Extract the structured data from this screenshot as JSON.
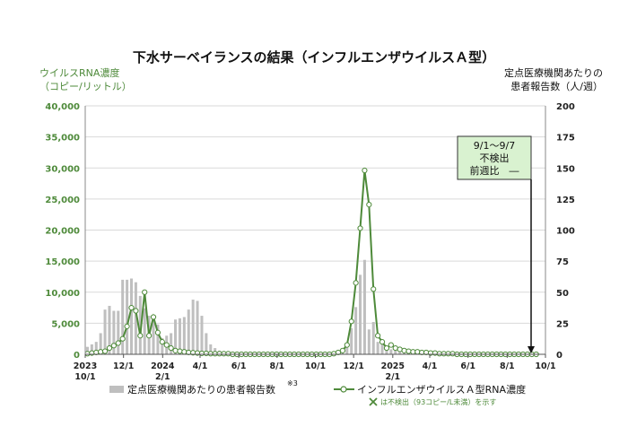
{
  "chart_data": {
    "type": "bar+line",
    "title": "下水サーベイランスの結果（インフルエンザウイルスＡ型）",
    "ylabel_left_line1": "ウイルスRNA濃度",
    "ylabel_left_line2": "（コピー/リットル）",
    "ylabel_right_line1": "定点医療機関あたりの",
    "ylabel_right_line2": "患者報告数（人/週）",
    "ylim_left": [
      0,
      40000
    ],
    "ylim_right": [
      0,
      200
    ],
    "yticks_left": [
      "0",
      "5,000",
      "10,000",
      "15,000",
      "20,000",
      "25,000",
      "30,000",
      "35,000",
      "40,000"
    ],
    "yticks_right": [
      "0",
      "25",
      "50",
      "75",
      "100",
      "125",
      "150",
      "175",
      "200"
    ],
    "xticks": [
      {
        "week": 0,
        "line1": "2023",
        "line2": "10/1"
      },
      {
        "week": 8.7,
        "line1": "12/1",
        "line2": ""
      },
      {
        "week": 17.6,
        "line1": "2024",
        "line2": "2/1"
      },
      {
        "week": 26.1,
        "line1": "4/1",
        "line2": ""
      },
      {
        "week": 34.9,
        "line1": "6/1",
        "line2": ""
      },
      {
        "week": 43.6,
        "line1": "8/1",
        "line2": ""
      },
      {
        "week": 52.3,
        "line1": "10/1",
        "line2": ""
      },
      {
        "week": 61.0,
        "line1": "12/1",
        "line2": ""
      },
      {
        "week": 69.9,
        "line1": "2025",
        "line2": "2/1"
      },
      {
        "week": 78.3,
        "line1": "4/1",
        "line2": ""
      },
      {
        "week": 87.0,
        "line1": "6/1",
        "line2": ""
      },
      {
        "week": 95.9,
        "line1": "8/1",
        "line2": ""
      },
      {
        "week": 104.6,
        "line1": "10/1",
        "line2": ""
      }
    ],
    "bars_series": {
      "name": "定点医療機関あたりの患者報告数",
      "axis": "right",
      "color": "#bfbfbf",
      "values": [
        6,
        8,
        10,
        17,
        36,
        39,
        35,
        35,
        60,
        60,
        61,
        58,
        47,
        37,
        31,
        27,
        24,
        13,
        15,
        17,
        28,
        29,
        30,
        36,
        44,
        43,
        31,
        17,
        8,
        5,
        3,
        2,
        1,
        1,
        1,
        1,
        1,
        1,
        0,
        0,
        0,
        0,
        0,
        0,
        0,
        0,
        0,
        0,
        0,
        0,
        0,
        0,
        0,
        0,
        0,
        0,
        0,
        1,
        2,
        9,
        21,
        38,
        64,
        76,
        20,
        26,
        10,
        8,
        6,
        4,
        4,
        3,
        3,
        3,
        2,
        2,
        2,
        2,
        2,
        2,
        1,
        1,
        1,
        1,
        1,
        1,
        1,
        1,
        1,
        0,
        0,
        0,
        0,
        0,
        0,
        0,
        0,
        0,
        0,
        0,
        0,
        0,
        0
      ]
    },
    "line_series": {
      "name": "インフルエンザウイルスＡ型RNA濃度",
      "axis": "left",
      "color": "#4e8a3a",
      "values": [
        100,
        200,
        300,
        400,
        500,
        1000,
        1400,
        1800,
        2500,
        4500,
        7500,
        7000,
        3000,
        10000,
        3000,
        6000,
        3500,
        2000,
        1500,
        1000,
        600,
        500,
        400,
        300,
        250,
        200,
        150,
        150,
        100,
        100,
        100,
        100,
        100,
        0,
        0,
        0,
        0,
        0,
        0,
        0,
        0,
        0,
        0,
        0,
        0,
        0,
        0,
        0,
        0,
        0,
        0,
        0,
        0,
        0,
        0,
        0,
        100,
        300,
        600,
        1500,
        5300,
        11500,
        20300,
        29600,
        24100,
        10500,
        3000,
        2000,
        1000,
        1500,
        1000,
        800,
        600,
        500,
        400,
        400,
        300,
        300,
        200,
        200,
        100,
        100,
        100,
        100,
        0,
        0,
        0,
        0,
        0,
        0,
        0,
        0,
        0,
        0,
        0,
        0,
        0,
        0,
        0,
        0,
        0,
        0,
        0
      ]
    },
    "footnote_marker": "※3",
    "legend_note": "は不検出（93コピー/L未満）を示す",
    "callout": {
      "line1": "9/1～9/7",
      "line2": "不検出",
      "line3": "前週比　―"
    },
    "gridlines": true
  }
}
